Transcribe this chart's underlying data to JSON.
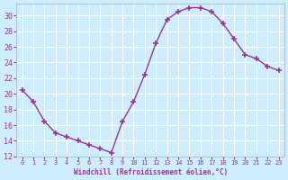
{
  "x": [
    0,
    1,
    2,
    3,
    4,
    5,
    6,
    7,
    8,
    9,
    10,
    11,
    12,
    13,
    14,
    15,
    16,
    17,
    18,
    19,
    20,
    21,
    22,
    23
  ],
  "y": [
    20.5,
    19.0,
    16.5,
    15.0,
    14.5,
    14.0,
    13.5,
    13.0,
    12.5,
    16.5,
    19.0,
    22.5,
    26.5,
    29.5,
    30.5,
    31.0,
    31.0,
    30.5,
    29.0,
    27.0,
    25.0,
    24.5,
    23.5,
    23.0
  ],
  "line_color": "#993399",
  "marker": "+",
  "marker_size": 4,
  "xlabel": "Windchill (Refroidissement éolien,°C)",
  "ylabel": "",
  "xlim": [
    -0.5,
    23.5
  ],
  "ylim": [
    12,
    31.5
  ],
  "yticks": [
    12,
    14,
    16,
    18,
    20,
    22,
    24,
    26,
    28,
    30
  ],
  "xticks": [
    0,
    1,
    2,
    3,
    4,
    5,
    6,
    7,
    8,
    9,
    10,
    11,
    12,
    13,
    14,
    15,
    16,
    17,
    18,
    19,
    20,
    21,
    22,
    23
  ],
  "bg_color": "#cceeff",
  "grid_color": "#ffffff",
  "tick_label_color": "#993399",
  "label_color": "#993399",
  "font": "monospace"
}
